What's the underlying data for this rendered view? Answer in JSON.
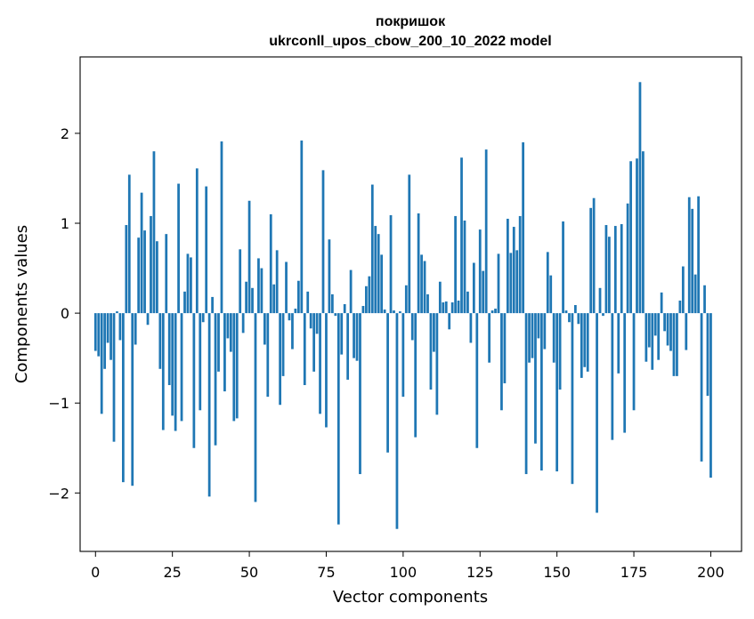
{
  "chart_data": {
    "type": "bar",
    "title": "покришок",
    "subtitle": "ukrconll_upos_cbow_200_10_2022 model",
    "xlabel": "Vector components",
    "ylabel": "Components values",
    "xlim": [
      -5,
      210
    ],
    "ylim": [
      -2.65,
      2.85
    ],
    "xticks": [
      0,
      25,
      50,
      75,
      100,
      125,
      150,
      175,
      200
    ],
    "yticks": [
      -2,
      -1,
      0,
      1,
      2
    ],
    "ytick_labels": [
      "−2",
      "−1",
      "0",
      "1",
      "2"
    ],
    "bar_color": "#1f77b4",
    "grid": false,
    "legend": "none",
    "values": [
      -0.42,
      -0.48,
      -1.12,
      -0.62,
      -0.33,
      -0.52,
      -1.43,
      0.02,
      -0.3,
      -1.88,
      0.98,
      1.54,
      -1.92,
      -0.35,
      0.84,
      1.34,
      0.92,
      -0.13,
      1.08,
      1.8,
      0.8,
      -0.62,
      -1.3,
      0.88,
      -0.8,
      -1.14,
      -1.31,
      1.44,
      -1.2,
      0.24,
      0.66,
      0.62,
      -1.5,
      1.61,
      -1.08,
      -0.1,
      1.41,
      -2.04,
      0.18,
      -1.47,
      -0.65,
      1.91,
      -0.87,
      -0.28,
      -0.43,
      -1.2,
      -1.17,
      0.71,
      -0.22,
      0.35,
      1.25,
      0.28,
      -2.1,
      0.61,
      0.5,
      -0.35,
      -0.93,
      1.1,
      0.32,
      0.7,
      -1.02,
      -0.7,
      0.57,
      -0.08,
      -0.4,
      0.05,
      0.36,
      1.92,
      -0.8,
      0.24,
      -0.17,
      -0.65,
      -0.23,
      -1.12,
      1.59,
      -1.27,
      0.82,
      0.21,
      -0.03,
      -2.35,
      -0.46,
      0.1,
      -0.74,
      0.48,
      -0.5,
      -0.53,
      -1.79,
      0.08,
      0.3,
      0.41,
      1.43,
      0.97,
      0.88,
      0.65,
      0.04,
      -1.55,
      1.09,
      0.03,
      -2.4,
      0.02,
      -0.93,
      0.31,
      1.54,
      -0.3,
      -1.38,
      1.11,
      0.65,
      0.58,
      0.21,
      -0.85,
      -0.43,
      -1.13,
      0.35,
      0.12,
      0.13,
      -0.18,
      0.12,
      1.08,
      0.14,
      1.73,
      1.03,
      0.24,
      -0.33,
      0.56,
      -1.5,
      0.93,
      0.47,
      1.82,
      -0.55,
      0.03,
      0.05,
      0.66,
      -1.08,
      -0.78,
      1.05,
      0.67,
      0.96,
      0.7,
      1.08,
      1.9,
      -1.79,
      -0.55,
      -0.5,
      -1.45,
      -0.28,
      -1.75,
      -0.4,
      0.68,
      0.42,
      -0.55,
      -1.76,
      -0.85,
      1.02,
      0.03,
      -0.1,
      -1.9,
      0.09,
      -0.12,
      -0.72,
      -0.6,
      -0.65,
      1.17,
      1.28,
      -2.22,
      0.28,
      -0.03,
      0.98,
      0.85,
      -1.41,
      0.97,
      -0.67,
      0.99,
      -1.33,
      1.22,
      1.69,
      -1.08,
      1.72,
      2.57,
      1.8,
      -0.54,
      -0.38,
      -0.63,
      -0.25,
      -0.52,
      0.23,
      -0.2,
      -0.36,
      -0.42,
      -0.7,
      -0.7,
      0.14,
      0.52,
      -0.41,
      1.29,
      1.16,
      0.43,
      1.3,
      -1.65,
      0.31,
      -0.92,
      -1.83
    ]
  }
}
